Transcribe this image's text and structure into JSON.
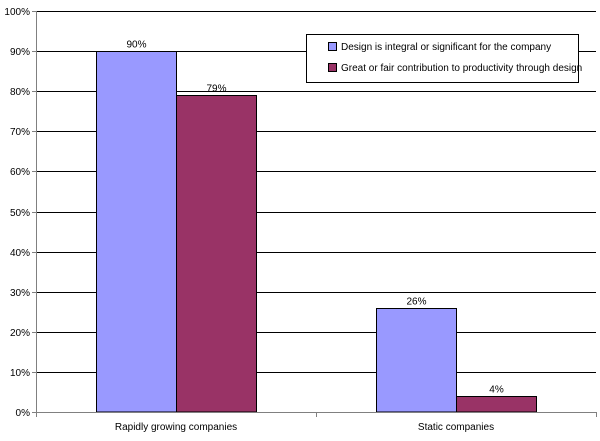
{
  "chart_data": {
    "type": "bar",
    "title": "",
    "xlabel": "",
    "ylabel": "",
    "ylim": [
      0,
      100
    ],
    "y_tick_step": 10,
    "y_tick_format": "percent",
    "grid": true,
    "legend_position": "top-right",
    "categories": [
      "Rapidly growing companies",
      "Static companies"
    ],
    "series": [
      {
        "name": "Design is integral or significant for the company",
        "values": [
          90,
          26
        ],
        "data_labels": [
          "90%",
          "26%"
        ],
        "color": "#9999ff"
      },
      {
        "name": "Great or fair contribution to productivity through design",
        "values": [
          79,
          4
        ],
        "data_labels": [
          "79%",
          "4%"
        ],
        "color": "#993366"
      }
    ],
    "y_ticks": [
      "0%",
      "10%",
      "20%",
      "30%",
      "40%",
      "50%",
      "60%",
      "70%",
      "80%",
      "90%",
      "100%"
    ],
    "colors": {
      "bar_outline": "#000000",
      "grid": "#000000",
      "axis": "#808080",
      "background": "#ffffff"
    }
  }
}
